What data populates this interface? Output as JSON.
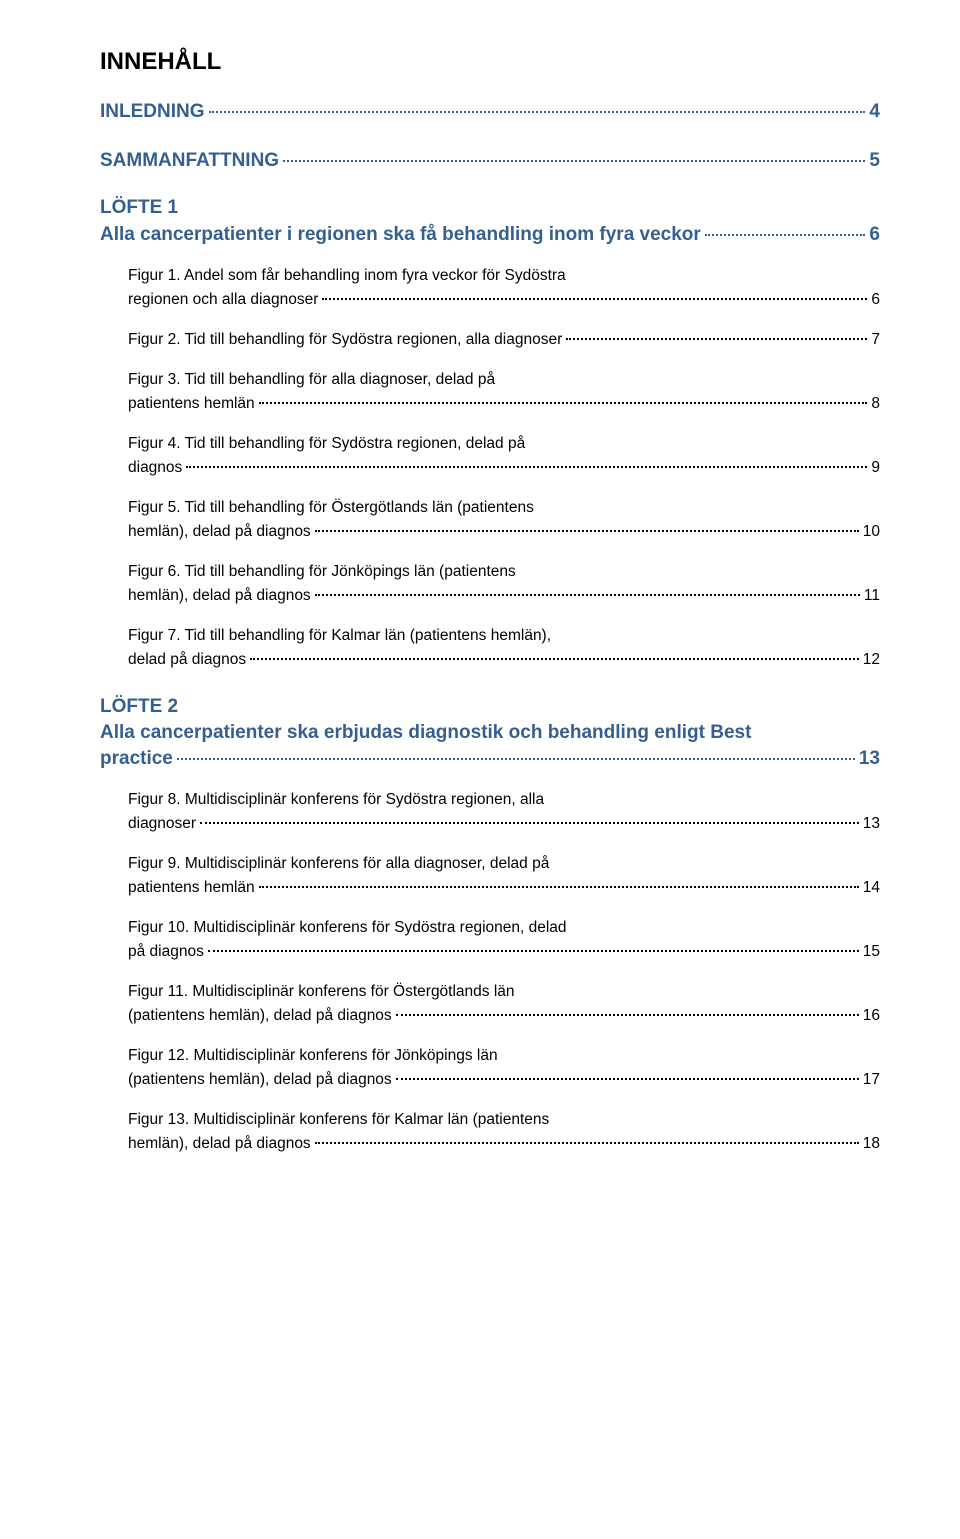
{
  "colors": {
    "heading_blue": "#365f91",
    "body_text": "#000000",
    "background": "#ffffff"
  },
  "typography": {
    "main_heading_family": "Arial",
    "main_heading_size_pt": 18,
    "section_family": "Arial",
    "section_size_pt": 14,
    "figure_family": "Verdana",
    "figure_size_pt": 11
  },
  "main_title": "INNEHÅLL",
  "sections": {
    "inledning": {
      "label": "INLEDNING",
      "page": "4"
    },
    "sammanfattning": {
      "label": "SAMMANFATTNING",
      "page": "5"
    },
    "lofte1": {
      "head": "LÖFTE 1",
      "sub": "Alla cancerpatienter i regionen ska få behandling inom fyra veckor",
      "page": "6"
    },
    "lofte2": {
      "head": "LÖFTE 2",
      "sub_l1": "Alla cancerpatienter ska erbjudas diagnostik och behandling enligt Best",
      "sub_l2": "practice",
      "page": "13"
    }
  },
  "figures": {
    "f1": {
      "l1": "Figur 1. Andel som får behandling inom fyra veckor för Sydöstra",
      "l2": "regionen och alla diagnoser",
      "page": "6"
    },
    "f2": {
      "l1": "Figur 2. Tid till behandling för Sydöstra regionen, alla diagnoser",
      "page": "7"
    },
    "f3": {
      "l1": "Figur 3. Tid till behandling för alla diagnoser, delad på",
      "l2": "patientens hemlän",
      "page": "8"
    },
    "f4": {
      "l1": "Figur 4. Tid till behandling för Sydöstra regionen, delad på",
      "l2": "diagnos",
      "page": "9"
    },
    "f5": {
      "l1": "Figur 5. Tid till behandling för Östergötlands län (patientens",
      "l2": "hemlän), delad på diagnos",
      "page": "10"
    },
    "f6": {
      "l1": "Figur 6. Tid till behandling för Jönköpings län (patientens",
      "l2": "hemlän), delad på diagnos",
      "page": "11"
    },
    "f7": {
      "l1": "Figur 7. Tid till behandling för Kalmar län (patientens hemlän),",
      "l2": "delad på diagnos",
      "page": "12"
    },
    "f8": {
      "l1": "Figur 8. Multidisciplinär konferens för Sydöstra regionen, alla",
      "l2": "diagnoser",
      "page": "13"
    },
    "f9": {
      "l1": "Figur 9. Multidisciplinär konferens för alla diagnoser, delad på",
      "l2": "patientens hemlän",
      "page": "14"
    },
    "f10": {
      "l1": "Figur 10. Multidisciplinär konferens för Sydöstra regionen, delad",
      "l2": "på diagnos",
      "page": "15"
    },
    "f11": {
      "l1": "Figur 11. Multidisciplinär konferens för Östergötlands län",
      "l2": "(patientens hemlän), delad på diagnos",
      "page": "16"
    },
    "f12": {
      "l1": "Figur 12. Multidisciplinär konferens för Jönköpings län",
      "l2": "(patientens hemlän), delad på diagnos",
      "page": "17"
    },
    "f13": {
      "l1": "Figur 13. Multidisciplinär konferens för Kalmar län (patientens",
      "l2": "hemlän), delad på diagnos",
      "page": "18"
    }
  }
}
